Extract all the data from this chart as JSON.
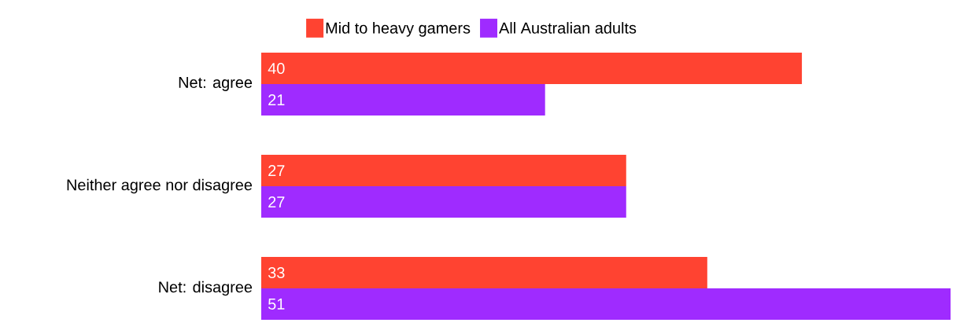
{
  "chart_data": {
    "type": "bar",
    "orientation": "horizontal",
    "data_labels": true,
    "legend": "top",
    "categories": [
      "Net: agree",
      "Neither agree nor disagree",
      "Net: disagree"
    ],
    "series": [
      {
        "name": "Mid to heavy gamers",
        "color": "#ff4331",
        "values": [
          40,
          27,
          33
        ]
      },
      {
        "name": "All Australian adults",
        "color": "#9f2bff",
        "values": [
          21,
          27,
          51
        ]
      }
    ]
  }
}
